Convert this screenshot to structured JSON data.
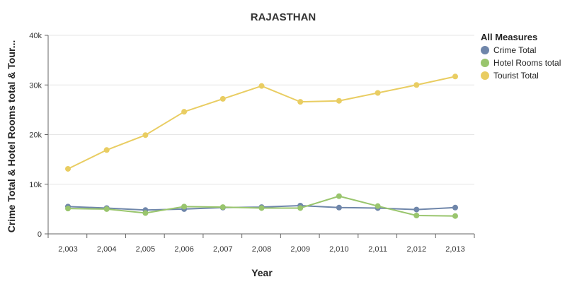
{
  "chart_data": {
    "type": "line",
    "title": "RAJASTHAN",
    "xlabel": "Year",
    "ylabel": "Crime Total & Hotel Rooms total & Tour...",
    "x": [
      "2,003",
      "2,004",
      "2,005",
      "2,006",
      "2,007",
      "2,008",
      "2,009",
      "2,010",
      "2,011",
      "2,012",
      "2,013"
    ],
    "ylim": [
      0,
      40000
    ],
    "yticks": [
      0,
      10000,
      20000,
      30000,
      40000
    ],
    "ytick_labels": [
      "0",
      "10k",
      "20k",
      "30k",
      "40k"
    ],
    "grid": true,
    "legend": {
      "title": "All Measures",
      "position": "right"
    },
    "series": [
      {
        "name": "Crime Total",
        "color": "#6f86aa",
        "values": [
          5500,
          5200,
          4800,
          5000,
          5300,
          5400,
          5700,
          5300,
          5200,
          4900,
          5300
        ]
      },
      {
        "name": "Hotel Rooms total",
        "color": "#99c56d",
        "values": [
          5100,
          5000,
          4200,
          5500,
          5400,
          5200,
          5200,
          7600,
          5600,
          3700,
          3600
        ]
      },
      {
        "name": "Tourist Total",
        "color": "#e9cd62",
        "values": [
          13100,
          16900,
          19900,
          24600,
          27200,
          29800,
          26600,
          26800,
          28400,
          30000,
          31700
        ]
      }
    ]
  }
}
